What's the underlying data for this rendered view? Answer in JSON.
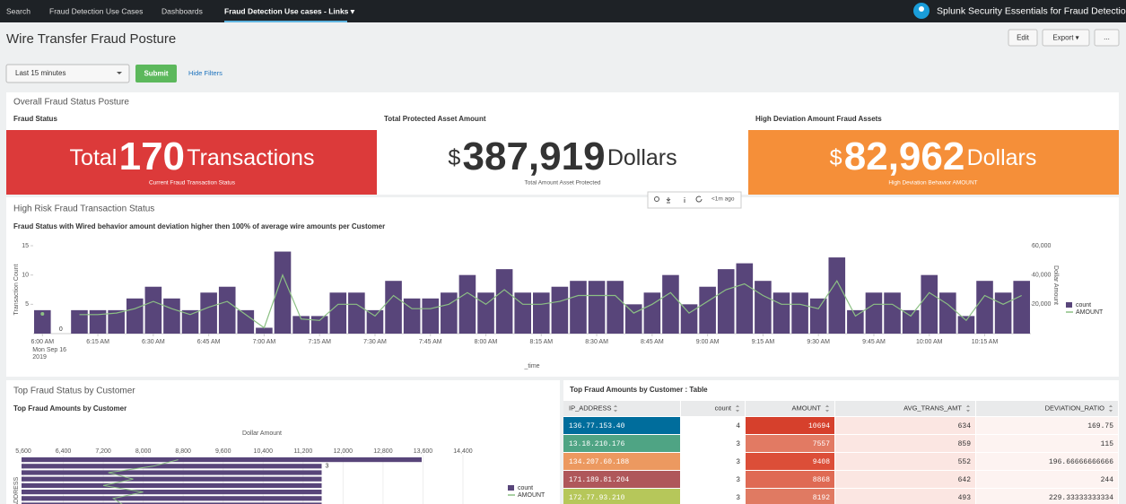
{
  "nav": {
    "items": [
      "Search",
      "Fraud Detection Use Cases",
      "Dashboards",
      "Fraud Detection Use cases - Links ▾"
    ],
    "app_title": "Splunk Security Essentials for Fraud Detection"
  },
  "header": {
    "title": "Wire Transfer Fraud Posture",
    "buttons": [
      "Edit",
      "Export ▾",
      "..."
    ]
  },
  "filters": {
    "time_picker": "Last 15 minutes",
    "submit": "Submit",
    "hide": "Hide Filters"
  },
  "posture": {
    "title": "Overall Fraud Status Posture",
    "singles": [
      {
        "label": "Fraud Status",
        "prefix": "Total",
        "value": "170",
        "unit": "Transactions",
        "caption": "Current Fraud Transaction Status",
        "color": "#dc3a3a"
      },
      {
        "label": "Total Protected Asset Amount",
        "prefix": "$",
        "value": "387,919",
        "unit": "Dollars",
        "caption": "Total Amount Asset Protected",
        "color": "#ffffff"
      },
      {
        "label": "High Deviation Amount Fraud Assets",
        "prefix": "$",
        "value": "82,962",
        "unit": "Dollars",
        "caption": "High Deviation Behavior AMOUNT",
        "color": "#f58f39"
      }
    ]
  },
  "risk_panel": {
    "title": "High Risk Fraud Transaction Status",
    "toolbar_age": "<1m ago"
  },
  "customer_panel": {
    "title": "Top Fraud Status by Customer"
  },
  "table": {
    "title": "Top Fraud Amounts by Customer : Table",
    "columns": [
      "IP_ADDRESS",
      "count",
      "AMOUNT",
      "AVG_TRANS_AMT",
      "DEVIATION_RATIO"
    ],
    "rows": [
      [
        "136.77.153.40",
        "4",
        "10694",
        "634",
        "169.75"
      ],
      [
        "13.18.210.176",
        "3",
        "7557",
        "859",
        "115"
      ],
      [
        "134.207.60.188",
        "3",
        "9408",
        "552",
        "196.66666666666"
      ],
      [
        "171.189.81.204",
        "3",
        "8868",
        "642",
        "244"
      ],
      [
        "172.77.93.210",
        "3",
        "8192",
        "493",
        "229.33333333334"
      ]
    ],
    "ip_colors": [
      "#006d9c",
      "#4fa484",
      "#ec9960",
      "#af575a",
      "#b6c75a"
    ],
    "amount_colors": [
      "#d6402c",
      "#e27a63",
      "#dc4e38",
      "#df6a54",
      "#e07a62"
    ],
    "avg_color": "#fbe6e2",
    "ratio_color": "#fdf3f1"
  },
  "chart_data": [
    {
      "type": "bar_line",
      "title": "Fraud Status with Wired behavior amount deviation higher then 100% of average wire amounts per Customer",
      "x_label": "_time",
      "y_label": "Transaction Count",
      "y2_label": "Dollar Amount",
      "categories": [
        "6:00 AM",
        null,
        null,
        "6:15 AM",
        null,
        null,
        "6:30 AM",
        null,
        null,
        "6:45 AM",
        null,
        null,
        "7:00 AM",
        null,
        null,
        "7:15 AM",
        null,
        null,
        "7:30 AM",
        null,
        null,
        "7:45 AM",
        null,
        null,
        "8:00 AM",
        null,
        null,
        "8:15 AM",
        null,
        null,
        "8:30 AM",
        null,
        null,
        "8:45 AM",
        null,
        null,
        "9:00 AM",
        null,
        null,
        "9:15 AM",
        null,
        null,
        "9:30 AM",
        null,
        null,
        "9:45 AM",
        null,
        null,
        "10:00 AM",
        null,
        null,
        "10:15 AM",
        null,
        null
      ],
      "first_tick_date": [
        "Mon Sep 16",
        "2019"
      ],
      "series": [
        {
          "name": "count",
          "color": "#58457a",
          "values": [
            4,
            0,
            4,
            4,
            4,
            6,
            8,
            6,
            4,
            7,
            8,
            4,
            1,
            14,
            3,
            3,
            7,
            7,
            4,
            9,
            6,
            6,
            7,
            10,
            7,
            11,
            7,
            7,
            8,
            9,
            9,
            9,
            5,
            7,
            10,
            5,
            8,
            11,
            12,
            9,
            7,
            7,
            6,
            13,
            4,
            7,
            7,
            4,
            10,
            7,
            3,
            9,
            7,
            9
          ],
          "value_labels": [
            null,
            "0",
            null,
            null,
            null,
            null,
            null,
            null,
            null,
            null,
            null,
            null,
            null,
            null,
            null,
            null,
            null,
            null,
            null,
            null,
            null,
            null,
            null,
            null,
            null,
            null,
            null,
            null,
            null,
            null,
            null,
            null,
            null,
            null,
            null,
            null,
            null,
            null,
            null,
            null,
            null,
            null,
            null,
            null,
            null,
            null,
            null,
            null,
            null,
            null,
            null,
            null,
            null,
            null
          ]
        },
        {
          "name": "AMOUNT",
          "color": "#8cc084",
          "axis": "y2",
          "values": [
            13500,
            null,
            13000,
            13000,
            14000,
            17000,
            22000,
            17000,
            13000,
            18000,
            22000,
            13000,
            4000,
            40000,
            10000,
            9000,
            20000,
            20000,
            12000,
            26000,
            17000,
            17000,
            20000,
            28000,
            20000,
            30000,
            20000,
            20000,
            22000,
            26000,
            26000,
            26000,
            14000,
            20000,
            28000,
            14000,
            22000,
            30000,
            34000,
            26000,
            20000,
            20000,
            17000,
            36000,
            12000,
            20000,
            20000,
            12000,
            28000,
            20000,
            9000,
            26000,
            20000,
            26000
          ]
        }
      ],
      "ylim": [
        0,
        15
      ],
      "yticks": [
        5,
        10,
        15
      ],
      "y2lim": [
        0,
        60000
      ],
      "y2ticks": [
        {
          "value": 20000,
          "label": "20,000"
        },
        {
          "value": 40000,
          "label": "40,000"
        },
        {
          "value": 60000,
          "label": "60,000"
        }
      ],
      "grid": false,
      "legend": "right"
    },
    {
      "type": "hbar_line",
      "title": "Top Fraud Amounts by Customer",
      "x_label": "Dollar Amount",
      "y_label": "IP_ADDRESS",
      "categories": [
        null,
        null,
        null,
        null,
        null,
        null,
        null,
        null
      ],
      "series": [
        {
          "name": "count",
          "color": "#58457a",
          "axis": "x2",
          "values": [
            4,
            3,
            3,
            3,
            3,
            3,
            3,
            3
          ],
          "value_labels": [
            null,
            "3",
            null,
            null,
            null,
            null,
            null,
            null
          ]
        },
        {
          "name": "AMOUNT",
          "color": "#8cc084",
          "values": [
            8700,
            8200,
            7300,
            7800,
            7200,
            8000,
            7400,
            7600
          ]
        }
      ],
      "xlim": [
        5600,
        14400
      ],
      "xticks": [
        {
          "value": 5600,
          "label": "5,600"
        },
        {
          "value": 6400,
          "label": "6,400"
        },
        {
          "value": 7200,
          "label": "7,200"
        },
        {
          "value": 8000,
          "label": "8,000"
        },
        {
          "value": 8800,
          "label": "8,800"
        },
        {
          "value": 9600,
          "label": "9,600"
        },
        {
          "value": 10400,
          "label": "10,400"
        },
        {
          "value": 11200,
          "label": "11,200"
        },
        {
          "value": 12000,
          "label": "12,000"
        },
        {
          "value": 12800,
          "label": "12,800"
        },
        {
          "value": 13600,
          "label": "13,600"
        },
        {
          "value": 14400,
          "label": "14,400"
        }
      ],
      "x2lim": [
        0,
        4
      ],
      "grid": true,
      "legend": "right"
    }
  ]
}
